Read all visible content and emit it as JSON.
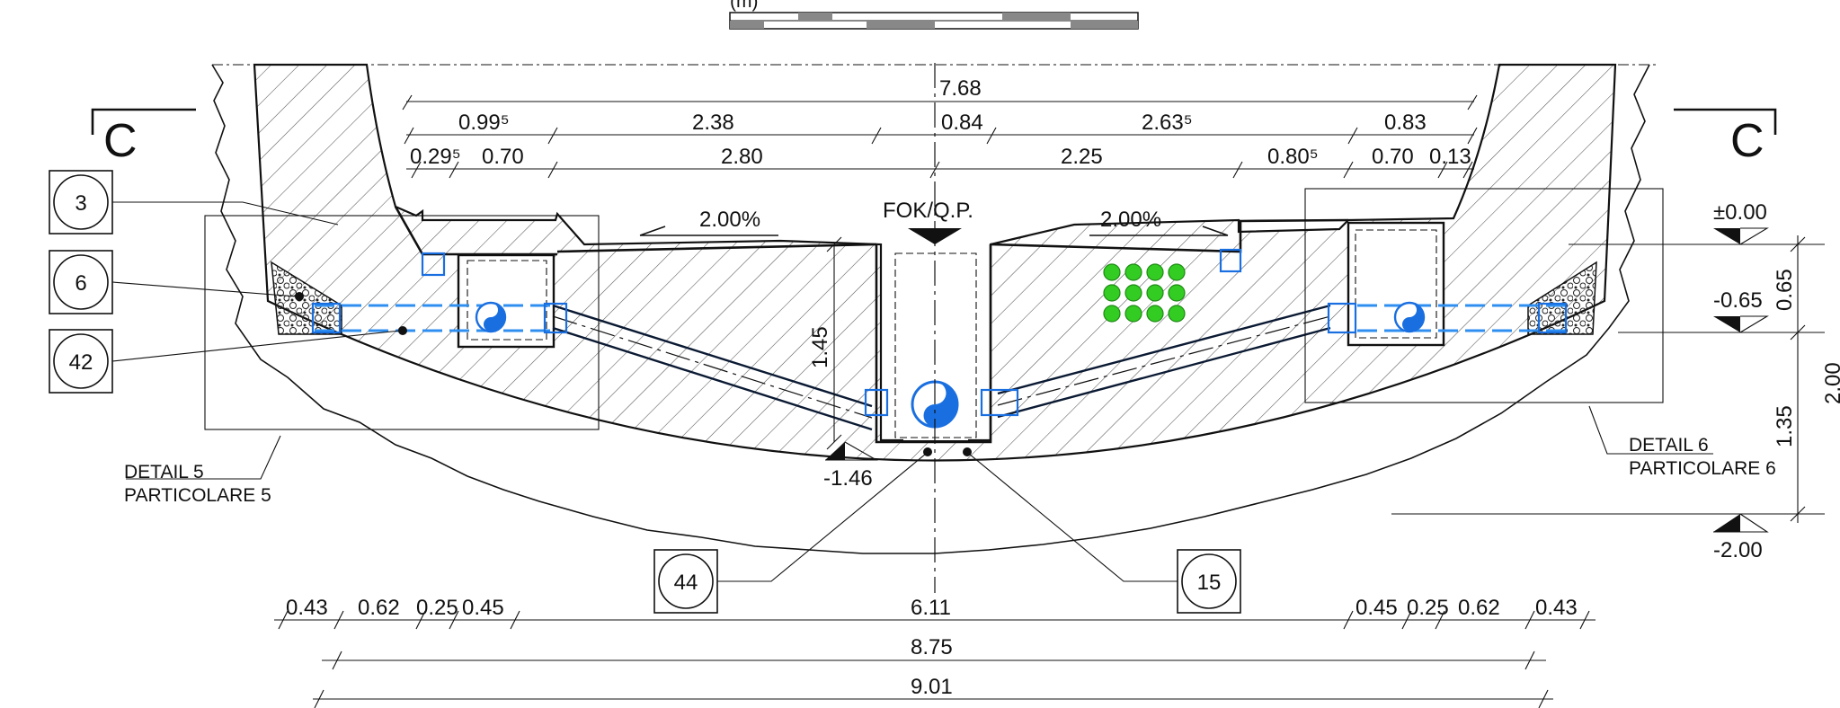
{
  "section_label": "C",
  "scale_bar_label": "(m)",
  "dimensions_top": {
    "overall": "7.68",
    "row2": [
      "0.99⁵",
      "2.38",
      "0.84",
      "2.63⁵",
      "0.83"
    ],
    "row3": [
      "0.29⁵",
      "0.70",
      "2.80",
      "2.25",
      "0.80⁵",
      "0.70",
      "0.13"
    ]
  },
  "dimensions_bottom": {
    "row1": [
      "0.43",
      "0.62",
      "0.25",
      "0.45",
      "6.11",
      "0.45",
      "0.25",
      "0.62",
      "0.43"
    ],
    "row2": "8.75",
    "row3": "9.01"
  },
  "slopes": [
    "2.00%",
    "2.00%"
  ],
  "axis_label": "FOK/Q.P.",
  "vertical_dim_center": "1.45",
  "levels": [
    "±0.00",
    "-0.65",
    "-2.00",
    "-1.46"
  ],
  "vertical_dims_right": [
    "0.65",
    "1.35",
    "2.00"
  ],
  "callouts": [
    "3",
    "6",
    "42",
    "44",
    "15"
  ],
  "details": {
    "left": {
      "line1": "DETAIL 5",
      "line2": "PARTICOLARE 5"
    },
    "right": {
      "line1": "DETAIL 6",
      "line2": "PARTICOLARE 6"
    }
  },
  "colors": {
    "pipe": "#1a6fe0",
    "cable_bundle": "#33cc22",
    "line": "#111111"
  }
}
